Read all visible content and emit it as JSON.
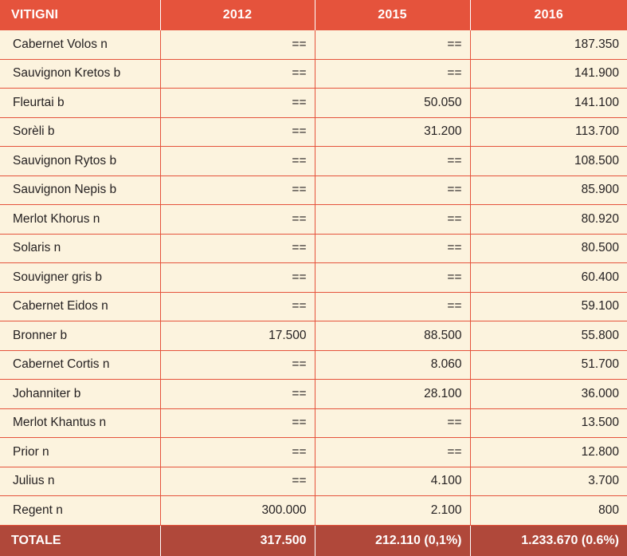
{
  "header": {
    "col0": "VITIGNI",
    "col1": "2012",
    "col2": "2015",
    "col3": "2016"
  },
  "rows": [
    {
      "name": "Cabernet Volos n",
      "v2012": "==",
      "v2015": "==",
      "v2016": "187.350"
    },
    {
      "name": "Sauvignon Kretos b",
      "v2012": "==",
      "v2015": "==",
      "v2016": "141.900"
    },
    {
      "name": "Fleurtai b",
      "v2012": "==",
      "v2015": "50.050",
      "v2016": "141.100"
    },
    {
      "name": "Sorèli b",
      "v2012": "==",
      "v2015": "31.200",
      "v2016": "113.700"
    },
    {
      "name": "Sauvignon Rytos b",
      "v2012": "==",
      "v2015": "==",
      "v2016": "108.500"
    },
    {
      "name": "Sauvignon Nepis b",
      "v2012": "==",
      "v2015": "==",
      "v2016": "85.900"
    },
    {
      "name": "Merlot Khorus n",
      "v2012": "==",
      "v2015": "==",
      "v2016": "80.920"
    },
    {
      "name": "Solaris n",
      "v2012": "==",
      "v2015": "==",
      "v2016": "80.500"
    },
    {
      "name": "Souvigner gris b",
      "v2012": "==",
      "v2015": "==",
      "v2016": "60.400"
    },
    {
      "name": "Cabernet Eidos n",
      "v2012": "==",
      "v2015": "==",
      "v2016": "59.100"
    },
    {
      "name": "Bronner b",
      "v2012": "17.500",
      "v2015": "88.500",
      "v2016": "55.800"
    },
    {
      "name": "Cabernet Cortis n",
      "v2012": "==",
      "v2015": "8.060",
      "v2016": "51.700"
    },
    {
      "name": "Johanniter b",
      "v2012": "==",
      "v2015": "28.100",
      "v2016": "36.000"
    },
    {
      "name": "Merlot Khantus n",
      "v2012": "==",
      "v2015": "==",
      "v2016": "13.500"
    },
    {
      "name": "Prior n",
      "v2012": "==",
      "v2015": "==",
      "v2016": "12.800"
    },
    {
      "name": "Julius n",
      "v2012": "==",
      "v2015": "4.100",
      "v2016": "3.700"
    },
    {
      "name": "Regent n",
      "v2012": "300.000",
      "v2015": "2.100",
      "v2016": "800"
    }
  ],
  "total": {
    "label": "TOTALE",
    "v2012": "317.500",
    "v2015": "212.110 (0,1%)",
    "v2016": "1.233.670 (0.6%)"
  },
  "colors": {
    "header_bg": "#e5533c",
    "total_bg": "#b0483a",
    "body_bg": "#fcf3de",
    "rule": "#e5533c"
  }
}
